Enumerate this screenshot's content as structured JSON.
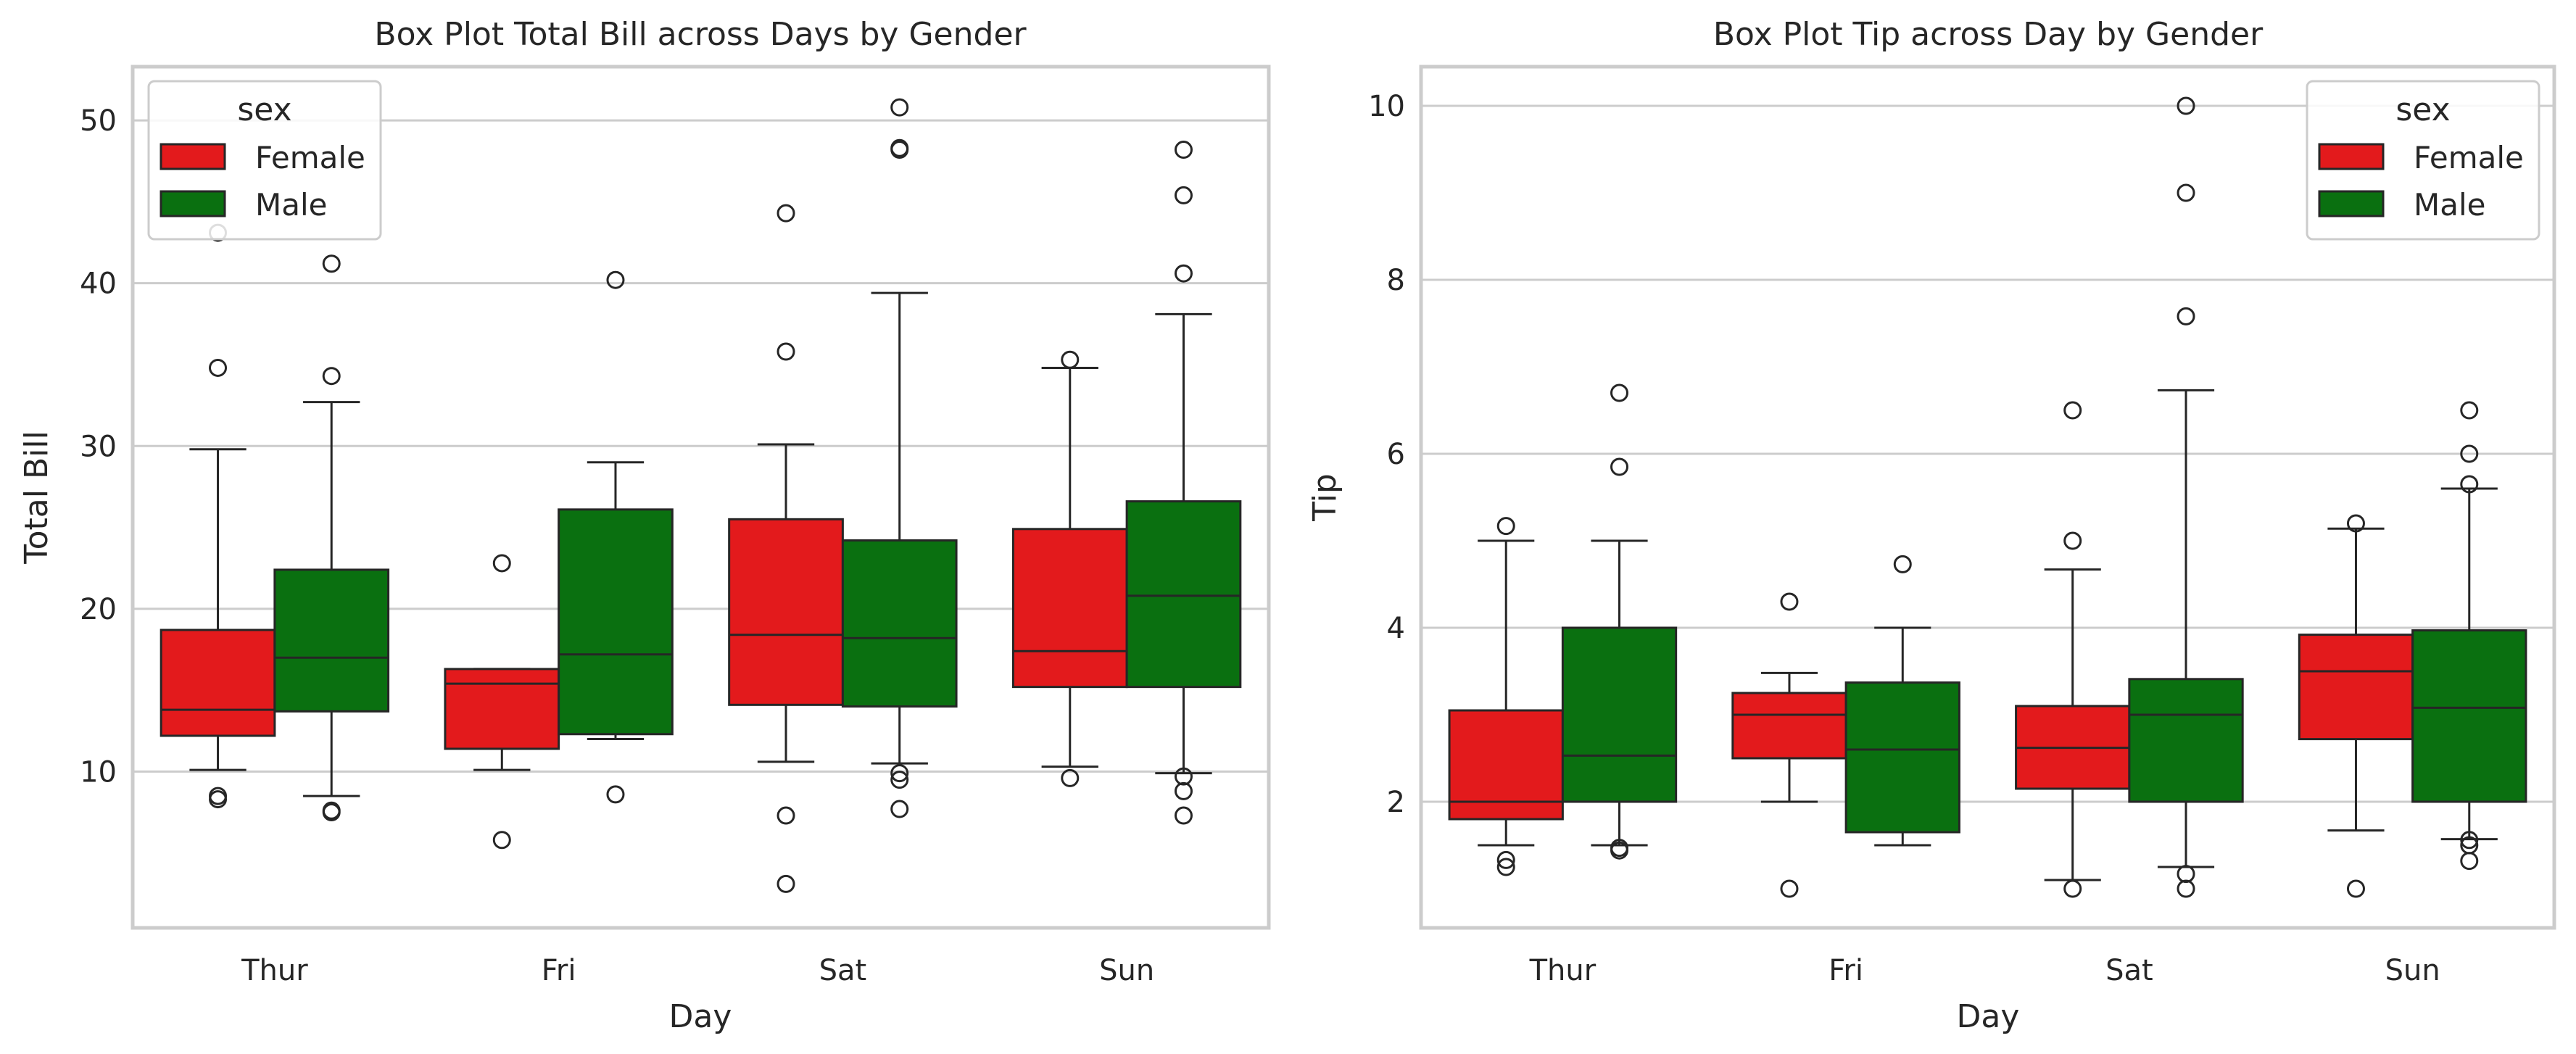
{
  "chart_data": [
    {
      "type": "box",
      "title": "Box Plot Total Bill across Days by Gender",
      "xlabel": "Day",
      "ylabel": "Total Bill",
      "categories": [
        "Thur",
        "Fri",
        "Sat",
        "Sun"
      ],
      "ylim": [
        0.4,
        53.3
      ],
      "yticks": [
        10,
        20,
        30,
        40,
        50
      ],
      "ytick_labels": [
        "10",
        "20",
        "30",
        "40",
        "50"
      ],
      "grid": true,
      "legend": {
        "title": "sex",
        "position": "top-left",
        "entries": [
          "Female",
          "Male"
        ]
      },
      "series": [
        {
          "name": "Female",
          "color": "#e31a1c",
          "boxes": [
            {
              "category": "Thur",
              "whisker_low": 10.1,
              "q1": 12.2,
              "median": 13.8,
              "q3": 18.7,
              "whisker_high": 29.8,
              "outliers": [
                8.3,
                8.5,
                34.8,
                43.1
              ]
            },
            {
              "category": "Fri",
              "whisker_low": 10.1,
              "q1": 11.4,
              "median": 15.4,
              "q3": 16.3,
              "whisker_high": 16.3,
              "outliers": [
                5.8,
                22.8
              ]
            },
            {
              "category": "Sat",
              "whisker_low": 10.6,
              "q1": 14.1,
              "median": 18.4,
              "q3": 25.5,
              "whisker_high": 30.1,
              "outliers": [
                3.1,
                7.3,
                35.8,
                44.3
              ]
            },
            {
              "category": "Sun",
              "whisker_low": 10.3,
              "q1": 15.2,
              "median": 17.4,
              "q3": 24.9,
              "whisker_high": 34.8,
              "outliers": [
                9.6,
                35.3
              ]
            }
          ]
        },
        {
          "name": "Male",
          "color": "#0a7010",
          "boxes": [
            {
              "category": "Thur",
              "whisker_low": 8.5,
              "q1": 13.7,
              "median": 17.0,
              "q3": 22.4,
              "whisker_high": 32.7,
              "outliers": [
                7.5,
                7.6,
                34.3,
                41.2
              ]
            },
            {
              "category": "Fri",
              "whisker_low": 12.0,
              "q1": 12.3,
              "median": 17.2,
              "q3": 26.1,
              "whisker_high": 29.0,
              "outliers": [
                8.6,
                40.2
              ]
            },
            {
              "category": "Sat",
              "whisker_low": 10.5,
              "q1": 14.0,
              "median": 18.2,
              "q3": 24.2,
              "whisker_high": 39.4,
              "outliers": [
                7.7,
                9.5,
                9.9,
                48.2,
                48.3,
                50.8
              ]
            },
            {
              "category": "Sun",
              "whisker_low": 9.9,
              "q1": 15.2,
              "median": 20.8,
              "q3": 26.6,
              "whisker_high": 38.1,
              "outliers": [
                7.3,
                8.8,
                9.7,
                40.6,
                45.4,
                48.2
              ]
            }
          ]
        }
      ]
    },
    {
      "type": "box",
      "title": "Box Plot Tip across Day by Gender",
      "xlabel": "Day",
      "ylabel": "Tip",
      "categories": [
        "Thur",
        "Fri",
        "Sat",
        "Sun"
      ],
      "ylim": [
        0.55,
        10.45
      ],
      "yticks": [
        2,
        4,
        6,
        8,
        10
      ],
      "ytick_labels": [
        "2",
        "4",
        "6",
        "8",
        "10"
      ],
      "grid": true,
      "legend": {
        "title": "sex",
        "position": "top-right",
        "entries": [
          "Female",
          "Male"
        ]
      },
      "series": [
        {
          "name": "Female",
          "color": "#e31a1c",
          "boxes": [
            {
              "category": "Thur",
              "whisker_low": 1.5,
              "q1": 1.8,
              "median": 2.0,
              "q3": 3.05,
              "whisker_high": 5.0,
              "outliers": [
                1.25,
                1.33,
                5.17
              ]
            },
            {
              "category": "Fri",
              "whisker_low": 2.0,
              "q1": 2.5,
              "median": 3.0,
              "q3": 3.25,
              "whisker_high": 3.48,
              "outliers": [
                1.0,
                4.3
              ]
            },
            {
              "category": "Sat",
              "whisker_low": 1.1,
              "q1": 2.15,
              "median": 2.62,
              "q3": 3.1,
              "whisker_high": 4.67,
              "outliers": [
                1.0,
                5.0,
                6.5
              ]
            },
            {
              "category": "Sun",
              "whisker_low": 1.67,
              "q1": 2.72,
              "median": 3.5,
              "q3": 3.92,
              "whisker_high": 5.14,
              "outliers": [
                1.0,
                5.2
              ]
            }
          ]
        },
        {
          "name": "Male",
          "color": "#0a7010",
          "boxes": [
            {
              "category": "Thur",
              "whisker_low": 1.5,
              "q1": 2.0,
              "median": 2.53,
              "q3": 4.0,
              "whisker_high": 5.0,
              "outliers": [
                1.44,
                1.47,
                5.85,
                6.7
              ]
            },
            {
              "category": "Fri",
              "whisker_low": 1.5,
              "q1": 1.65,
              "median": 2.6,
              "q3": 3.37,
              "whisker_high": 4.0,
              "outliers": [
                4.73
              ]
            },
            {
              "category": "Sat",
              "whisker_low": 1.25,
              "q1": 2.0,
              "median": 3.0,
              "q3": 3.41,
              "whisker_high": 6.73,
              "outliers": [
                1.0,
                1.17,
                7.58,
                9.0,
                10.0
              ]
            },
            {
              "category": "Sun",
              "whisker_low": 1.57,
              "q1": 2.0,
              "median": 3.08,
              "q3": 3.97,
              "whisker_high": 5.6,
              "outliers": [
                1.32,
                1.5,
                1.56,
                5.65,
                6.0,
                6.5
              ]
            }
          ]
        }
      ]
    }
  ]
}
